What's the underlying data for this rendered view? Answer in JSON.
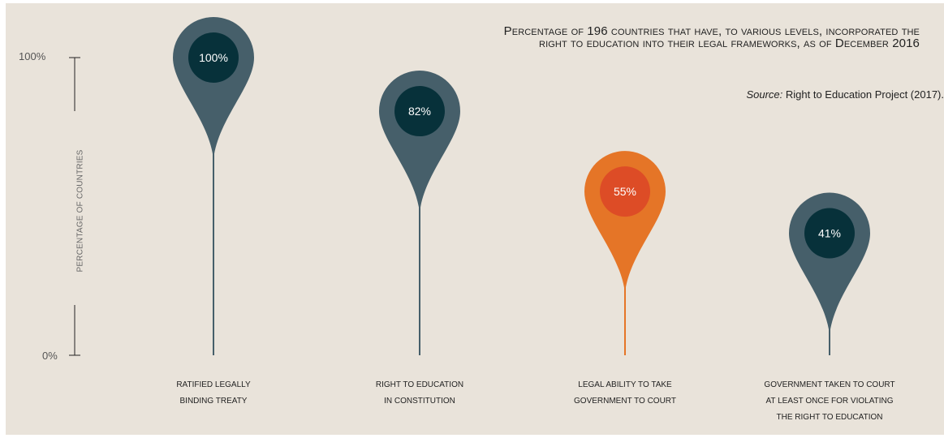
{
  "title_lines": [
    "Percentage of 196 countries that have, to various levels, incorporated the",
    "right to education into their legal frameworks, as of December 2016"
  ],
  "source": {
    "label": "Source:",
    "text": "Right to Education Project (2017)."
  },
  "y_axis": {
    "title": "PERCENTAGE OF COUNTRIES",
    "top_label": "100%",
    "bottom_label": "0%"
  },
  "colors": {
    "background": "#e9e3da",
    "pin_default": "#465f6a",
    "pin_inner_default": "#07313a",
    "pin_highlight": "#e57527",
    "pin_inner_highlight": "#dd4c26",
    "axis": "#222222"
  },
  "chart_data": {
    "type": "bar",
    "categories": [
      [
        "Ratified legally",
        "binding treaty"
      ],
      [
        "Right to education",
        "in constitution"
      ],
      [
        "Legal ability to take",
        "government to court"
      ],
      [
        "Government taken to court",
        "at least once for violating",
        "the right to education"
      ]
    ],
    "values": [
      100,
      82,
      55,
      41
    ],
    "value_labels": [
      "100%",
      "82%",
      "55%",
      "41%"
    ],
    "highlight_index": 2,
    "ylim": [
      0,
      100
    ],
    "ylabel": "PERCENTAGE OF COUNTRIES"
  }
}
